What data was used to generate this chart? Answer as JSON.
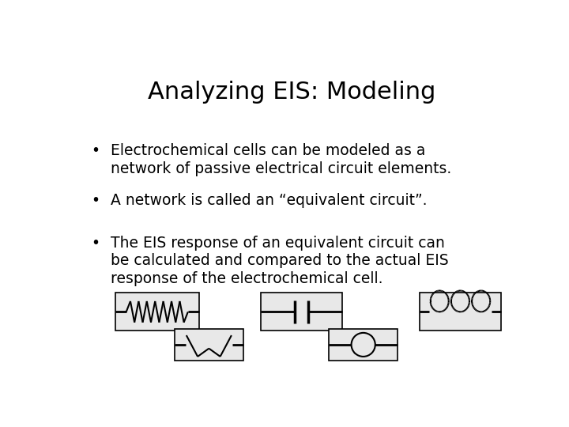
{
  "title": "Analyzing EIS: Modeling",
  "title_fontsize": 22,
  "background_color": "#ffffff",
  "text_color": "#000000",
  "bullet_points": [
    "Electrochemical cells can be modeled as a\nnetwork of passive electrical circuit elements.",
    "A network is called an “equivalent circuit”.",
    "The EIS response of an equivalent circuit can\nbe calculated and compared to the actual EIS\nresponse of the electrochemical cell."
  ],
  "bullet_fontsize": 13.5,
  "font_family": "Arial"
}
